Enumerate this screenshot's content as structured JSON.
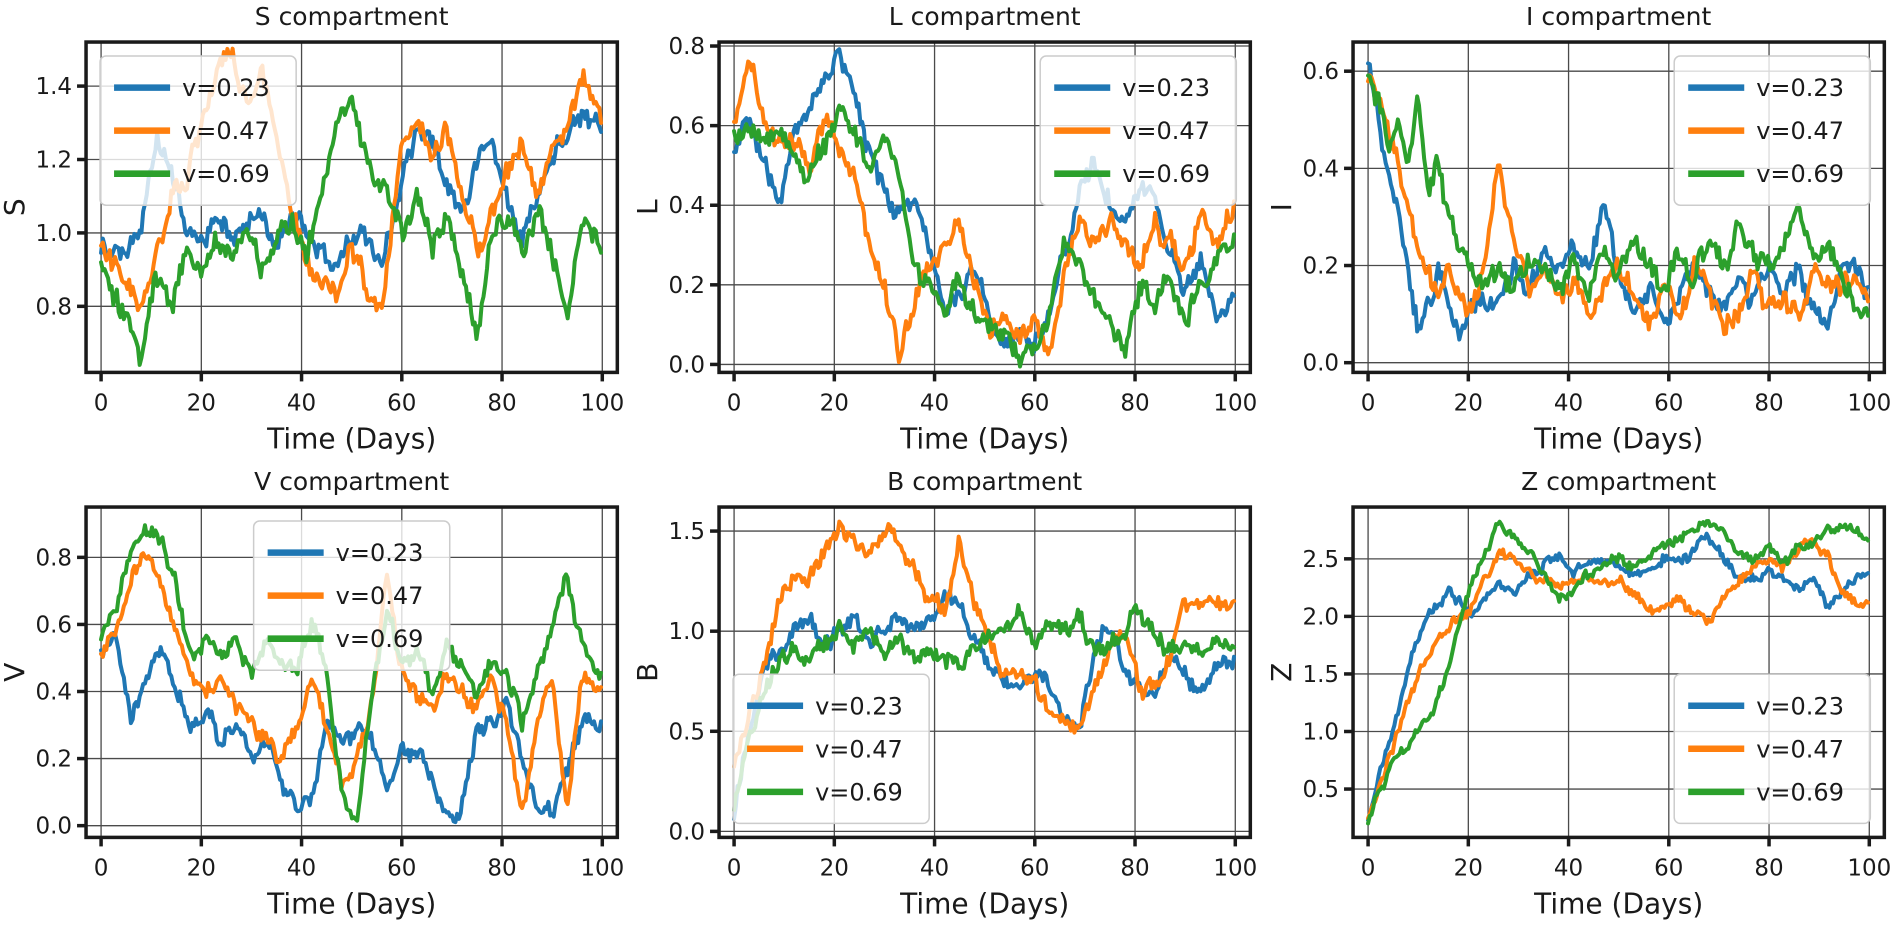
{
  "figure": {
    "background": "#ffffff",
    "grid_color": "#4a4a4a",
    "spine_color": "#1a1a1a",
    "tick_color": "#1a1a1a",
    "legend_bg": "#ffffff",
    "legend_border": "#cccccc"
  },
  "chart_data": [
    {
      "id": "s-compartment",
      "type": "line",
      "title": "S compartment",
      "xlabel": "Time (Days)",
      "ylabel": "S",
      "xlim": [
        -3,
        103
      ],
      "ylim": [
        0.62,
        1.52
      ],
      "xticks": [
        0,
        20,
        40,
        60,
        80,
        100
      ],
      "yticks": [
        0.8,
        1.0,
        1.2,
        1.4
      ],
      "grid": true,
      "legend_loc": "upper-left",
      "noise_amp": 0.03,
      "x": [
        0,
        4,
        8,
        11,
        14,
        17,
        20,
        23,
        26,
        29,
        32,
        35,
        38,
        41,
        44,
        47,
        50,
        53,
        56,
        60,
        63,
        66,
        69,
        72,
        75,
        78,
        81,
        84,
        87,
        90,
        93,
        96,
        100
      ],
      "series": [
        {
          "name": "v=0.23",
          "color": "#1f77b4",
          "y": [
            0.97,
            0.92,
            1.02,
            1.27,
            1.18,
            1.0,
            0.97,
            1.05,
            0.98,
            1.02,
            1.05,
            0.95,
            1.05,
            1.0,
            0.95,
            0.9,
            1.0,
            0.97,
            0.9,
            1.15,
            1.3,
            1.25,
            1.15,
            1.05,
            1.2,
            1.25,
            1.1,
            1.0,
            1.1,
            1.2,
            1.28,
            1.32,
            1.28
          ]
        },
        {
          "name": "v=0.47",
          "color": "#ff7f0e",
          "y": [
            0.95,
            0.88,
            0.78,
            0.95,
            1.1,
            1.15,
            1.3,
            1.45,
            1.5,
            1.35,
            1.45,
            1.25,
            1.05,
            0.9,
            0.85,
            0.8,
            0.95,
            0.85,
            0.8,
            1.25,
            1.3,
            1.2,
            1.3,
            1.1,
            0.95,
            1.05,
            1.15,
            1.25,
            1.1,
            1.25,
            1.3,
            1.42,
            1.3
          ]
        },
        {
          "name": "v=0.69",
          "color": "#2ca02c",
          "y": [
            0.92,
            0.8,
            0.68,
            0.88,
            0.8,
            0.95,
            0.9,
            0.97,
            0.93,
            1.0,
            0.92,
            0.97,
            1.02,
            0.95,
            1.1,
            1.3,
            1.35,
            1.2,
            1.12,
            1.0,
            1.1,
            0.95,
            1.05,
            0.9,
            0.72,
            1.0,
            1.05,
            0.95,
            1.05,
            0.95,
            0.78,
            1.05,
            0.93
          ]
        }
      ]
    },
    {
      "id": "l-compartment",
      "type": "line",
      "title": "L compartment",
      "xlabel": "Time (Days)",
      "ylabel": "L",
      "xlim": [
        -3,
        103
      ],
      "ylim": [
        -0.02,
        0.81
      ],
      "xticks": [
        0,
        20,
        40,
        60,
        80,
        100
      ],
      "yticks": [
        0.0,
        0.2,
        0.4,
        0.6,
        0.8
      ],
      "grid": true,
      "legend_loc": "upper-right",
      "noise_amp": 0.025,
      "x": [
        0,
        3,
        6,
        9,
        12,
        15,
        18,
        21,
        24,
        27,
        30,
        33,
        36,
        39,
        42,
        45,
        48,
        51,
        54,
        57,
        60,
        63,
        66,
        69,
        72,
        75,
        78,
        81,
        84,
        87,
        90,
        93,
        96,
        100
      ],
      "series": [
        {
          "name": "v=0.23",
          "color": "#1f77b4",
          "y": [
            0.55,
            0.62,
            0.5,
            0.4,
            0.6,
            0.65,
            0.72,
            0.78,
            0.68,
            0.55,
            0.42,
            0.38,
            0.42,
            0.3,
            0.12,
            0.18,
            0.25,
            0.1,
            0.05,
            0.08,
            0.05,
            0.15,
            0.3,
            0.45,
            0.5,
            0.42,
            0.35,
            0.45,
            0.4,
            0.3,
            0.2,
            0.28,
            0.12,
            0.17
          ]
        },
        {
          "name": "v=0.47",
          "color": "#ff7f0e",
          "y": [
            0.6,
            0.78,
            0.62,
            0.55,
            0.58,
            0.5,
            0.62,
            0.55,
            0.48,
            0.3,
            0.2,
            0.02,
            0.15,
            0.25,
            0.3,
            0.35,
            0.2,
            0.1,
            0.15,
            0.05,
            0.12,
            0.02,
            0.25,
            0.35,
            0.3,
            0.35,
            0.3,
            0.25,
            0.35,
            0.3,
            0.25,
            0.35,
            0.3,
            0.38
          ]
        },
        {
          "name": "v=0.69",
          "color": "#2ca02c",
          "y": [
            0.58,
            0.6,
            0.55,
            0.62,
            0.5,
            0.45,
            0.55,
            0.65,
            0.6,
            0.5,
            0.55,
            0.45,
            0.25,
            0.2,
            0.15,
            0.2,
            0.12,
            0.1,
            0.08,
            0.02,
            0.05,
            0.12,
            0.3,
            0.25,
            0.15,
            0.1,
            0.05,
            0.2,
            0.15,
            0.25,
            0.1,
            0.2,
            0.25,
            0.3
          ]
        }
      ]
    },
    {
      "id": "i-compartment",
      "type": "line",
      "title": "I compartment",
      "xlabel": "Time (Days)",
      "ylabel": "I",
      "xlim": [
        -3,
        103
      ],
      "ylim": [
        -0.02,
        0.66
      ],
      "xticks": [
        0,
        20,
        40,
        60,
        80,
        100
      ],
      "yticks": [
        0.0,
        0.2,
        0.4,
        0.6
      ],
      "grid": true,
      "legend_loc": "upper-right",
      "noise_amp": 0.022,
      "x": [
        0,
        2,
        4,
        6,
        8,
        10,
        12,
        14,
        16,
        18,
        20,
        23,
        26,
        29,
        32,
        35,
        38,
        41,
        44,
        47,
        50,
        53,
        56,
        59,
        62,
        65,
        68,
        71,
        74,
        77,
        80,
        83,
        86,
        89,
        92,
        95,
        100
      ],
      "series": [
        {
          "name": "v=0.23",
          "color": "#1f77b4",
          "y": [
            0.62,
            0.5,
            0.38,
            0.3,
            0.18,
            0.07,
            0.12,
            0.18,
            0.12,
            0.08,
            0.1,
            0.15,
            0.1,
            0.2,
            0.15,
            0.22,
            0.18,
            0.25,
            0.2,
            0.32,
            0.18,
            0.1,
            0.15,
            0.08,
            0.12,
            0.2,
            0.15,
            0.1,
            0.18,
            0.12,
            0.2,
            0.15,
            0.22,
            0.1,
            0.08,
            0.22,
            0.15
          ]
        },
        {
          "name": "v=0.47",
          "color": "#ff7f0e",
          "y": [
            0.6,
            0.55,
            0.48,
            0.4,
            0.3,
            0.22,
            0.18,
            0.12,
            0.2,
            0.15,
            0.1,
            0.18,
            0.41,
            0.25,
            0.15,
            0.2,
            0.12,
            0.18,
            0.1,
            0.15,
            0.2,
            0.12,
            0.08,
            0.15,
            0.1,
            0.2,
            0.15,
            0.08,
            0.12,
            0.18,
            0.1,
            0.15,
            0.1,
            0.2,
            0.15,
            0.18,
            0.13
          ]
        },
        {
          "name": "v=0.69",
          "color": "#2ca02c",
          "y": [
            0.6,
            0.55,
            0.45,
            0.5,
            0.42,
            0.54,
            0.35,
            0.42,
            0.3,
            0.25,
            0.2,
            0.15,
            0.2,
            0.15,
            0.22,
            0.18,
            0.15,
            0.2,
            0.15,
            0.22,
            0.18,
            0.25,
            0.2,
            0.15,
            0.22,
            0.18,
            0.25,
            0.2,
            0.3,
            0.22,
            0.18,
            0.25,
            0.32,
            0.2,
            0.25,
            0.15,
            0.1
          ]
        }
      ]
    },
    {
      "id": "v-compartment",
      "type": "line",
      "title": "V compartment",
      "xlabel": "Time (Days)",
      "ylabel": "V",
      "xlim": [
        -3,
        103
      ],
      "ylim": [
        -0.035,
        0.95
      ],
      "xticks": [
        0,
        20,
        40,
        60,
        80,
        100
      ],
      "yticks": [
        0.0,
        0.2,
        0.4,
        0.6,
        0.8
      ],
      "grid": true,
      "legend_loc": "upper-center",
      "noise_amp": 0.025,
      "x": [
        0,
        3,
        6,
        9,
        12,
        15,
        18,
        21,
        24,
        27,
        30,
        33,
        36,
        39,
        42,
        45,
        48,
        51,
        54,
        57,
        60,
        63,
        66,
        69,
        72,
        75,
        78,
        81,
        84,
        87,
        90,
        93,
        96,
        100
      ],
      "series": [
        {
          "name": "v=0.23",
          "color": "#1f77b4",
          "y": [
            0.5,
            0.55,
            0.3,
            0.45,
            0.55,
            0.4,
            0.3,
            0.35,
            0.25,
            0.3,
            0.2,
            0.25,
            0.15,
            0.05,
            0.08,
            0.3,
            0.25,
            0.3,
            0.25,
            0.12,
            0.25,
            0.2,
            0.15,
            0.02,
            0.05,
            0.3,
            0.3,
            0.35,
            0.2,
            0.08,
            0.05,
            0.15,
            0.3,
            0.3
          ]
        },
        {
          "name": "v=0.47",
          "color": "#ff7f0e",
          "y": [
            0.5,
            0.6,
            0.75,
            0.8,
            0.72,
            0.6,
            0.45,
            0.4,
            0.45,
            0.35,
            0.3,
            0.25,
            0.2,
            0.3,
            0.45,
            0.3,
            0.12,
            0.2,
            0.35,
            0.75,
            0.45,
            0.4,
            0.35,
            0.45,
            0.4,
            0.35,
            0.45,
            0.3,
            0.02,
            0.3,
            0.45,
            0.05,
            0.45,
            0.4
          ]
        },
        {
          "name": "v=0.69",
          "color": "#2ca02c",
          "y": [
            0.55,
            0.65,
            0.82,
            0.9,
            0.85,
            0.7,
            0.5,
            0.55,
            0.5,
            0.55,
            0.45,
            0.55,
            0.5,
            0.45,
            0.62,
            0.45,
            0.1,
            0.02,
            0.4,
            0.65,
            0.45,
            0.55,
            0.4,
            0.55,
            0.45,
            0.4,
            0.5,
            0.45,
            0.3,
            0.45,
            0.6,
            0.75,
            0.55,
            0.45
          ]
        }
      ]
    },
    {
      "id": "b-compartment",
      "type": "line",
      "title": "B compartment",
      "xlabel": "Time (Days)",
      "ylabel": "B",
      "xlim": [
        -3,
        103
      ],
      "ylim": [
        -0.03,
        1.62
      ],
      "xticks": [
        0,
        20,
        40,
        60,
        80,
        100
      ],
      "yticks": [
        0.0,
        0.5,
        1.0,
        1.5
      ],
      "grid": true,
      "legend_loc": "lower-left",
      "noise_amp": 0.042,
      "x": [
        0,
        3,
        6,
        9,
        12,
        15,
        18,
        21,
        24,
        27,
        30,
        33,
        36,
        39,
        42,
        45,
        48,
        51,
        54,
        57,
        60,
        63,
        66,
        69,
        72,
        75,
        78,
        81,
        84,
        87,
        90,
        93,
        96,
        100
      ],
      "series": [
        {
          "name": "v=0.23",
          "color": "#1f77b4",
          "y": [
            0.05,
            0.5,
            0.8,
            0.95,
            1.0,
            1.05,
            0.95,
            1.0,
            1.05,
            0.95,
            1.0,
            1.05,
            1.0,
            1.05,
            1.2,
            1.15,
            0.95,
            0.8,
            0.75,
            0.7,
            0.78,
            0.7,
            0.55,
            0.5,
            0.95,
            1.05,
            0.8,
            0.75,
            0.7,
            0.85,
            0.75,
            0.7,
            0.8,
            0.85
          ]
        },
        {
          "name": "v=0.47",
          "color": "#ff7f0e",
          "y": [
            0.3,
            0.55,
            0.85,
            1.15,
            1.25,
            1.25,
            1.4,
            1.55,
            1.45,
            1.4,
            1.5,
            1.45,
            1.3,
            1.15,
            1.1,
            1.45,
            1.15,
            0.95,
            0.8,
            0.78,
            0.75,
            0.6,
            0.55,
            0.52,
            0.7,
            0.9,
            1.0,
            0.7,
            0.72,
            0.9,
            1.15,
            1.1,
            1.15,
            1.1
          ]
        },
        {
          "name": "v=0.69",
          "color": "#2ca02c",
          "y": [
            0.15,
            0.45,
            0.7,
            0.85,
            0.9,
            0.85,
            0.95,
            1.0,
            0.95,
            1.05,
            0.9,
            0.95,
            0.85,
            0.9,
            0.85,
            0.85,
            0.9,
            1.0,
            1.05,
            1.1,
            0.95,
            1.05,
            1.0,
            1.05,
            0.9,
            0.95,
            1.0,
            1.1,
            0.95,
            0.9,
            0.95,
            0.9,
            0.95,
            0.9
          ]
        }
      ]
    },
    {
      "id": "z-compartment",
      "type": "line",
      "title": "Z compartment",
      "xlabel": "Time (Days)",
      "ylabel": "Z",
      "xlim": [
        -3,
        103
      ],
      "ylim": [
        0.08,
        2.95
      ],
      "xticks": [
        0,
        20,
        40,
        60,
        80,
        100
      ],
      "yticks": [
        0.5,
        1.0,
        1.5,
        2.0,
        2.5
      ],
      "grid": true,
      "legend_loc": "lower-right",
      "noise_amp": 0.045,
      "x": [
        0,
        2,
        4,
        6,
        8,
        10,
        12,
        14,
        16,
        18,
        20,
        23,
        26,
        29,
        32,
        35,
        38,
        41,
        44,
        47,
        50,
        53,
        56,
        59,
        62,
        65,
        68,
        71,
        74,
        77,
        80,
        83,
        86,
        89,
        92,
        95,
        100
      ],
      "series": [
        {
          "name": "v=0.23",
          "color": "#1f77b4",
          "y": [
            0.25,
            0.55,
            0.85,
            1.2,
            1.55,
            1.85,
            2.0,
            2.1,
            2.2,
            2.15,
            2.05,
            2.15,
            2.3,
            2.2,
            2.35,
            2.45,
            2.5,
            2.4,
            2.45,
            2.5,
            2.45,
            2.35,
            2.4,
            2.5,
            2.45,
            2.55,
            2.7,
            2.5,
            2.35,
            2.3,
            2.4,
            2.3,
            2.25,
            2.35,
            2.1,
            2.25,
            2.4
          ]
        },
        {
          "name": "v=0.47",
          "color": "#ff7f0e",
          "y": [
            0.25,
            0.5,
            0.75,
            1.0,
            1.3,
            1.5,
            1.65,
            1.8,
            1.9,
            2.0,
            2.05,
            2.3,
            2.55,
            2.5,
            2.4,
            2.3,
            2.25,
            2.3,
            2.35,
            2.3,
            2.3,
            2.2,
            2.0,
            2.1,
            2.15,
            2.05,
            2.0,
            2.2,
            2.3,
            2.45,
            2.5,
            2.45,
            2.55,
            2.65,
            2.5,
            2.2,
            2.05
          ]
        },
        {
          "name": "v=0.69",
          "color": "#2ca02c",
          "y": [
            0.2,
            0.45,
            0.65,
            0.8,
            0.9,
            1.0,
            1.1,
            1.3,
            1.6,
            1.9,
            2.2,
            2.5,
            2.8,
            2.7,
            2.55,
            2.4,
            2.15,
            2.2,
            2.35,
            2.45,
            2.5,
            2.45,
            2.5,
            2.6,
            2.7,
            2.75,
            2.8,
            2.7,
            2.55,
            2.5,
            2.6,
            2.5,
            2.55,
            2.65,
            2.75,
            2.8,
            2.7
          ]
        }
      ]
    }
  ]
}
